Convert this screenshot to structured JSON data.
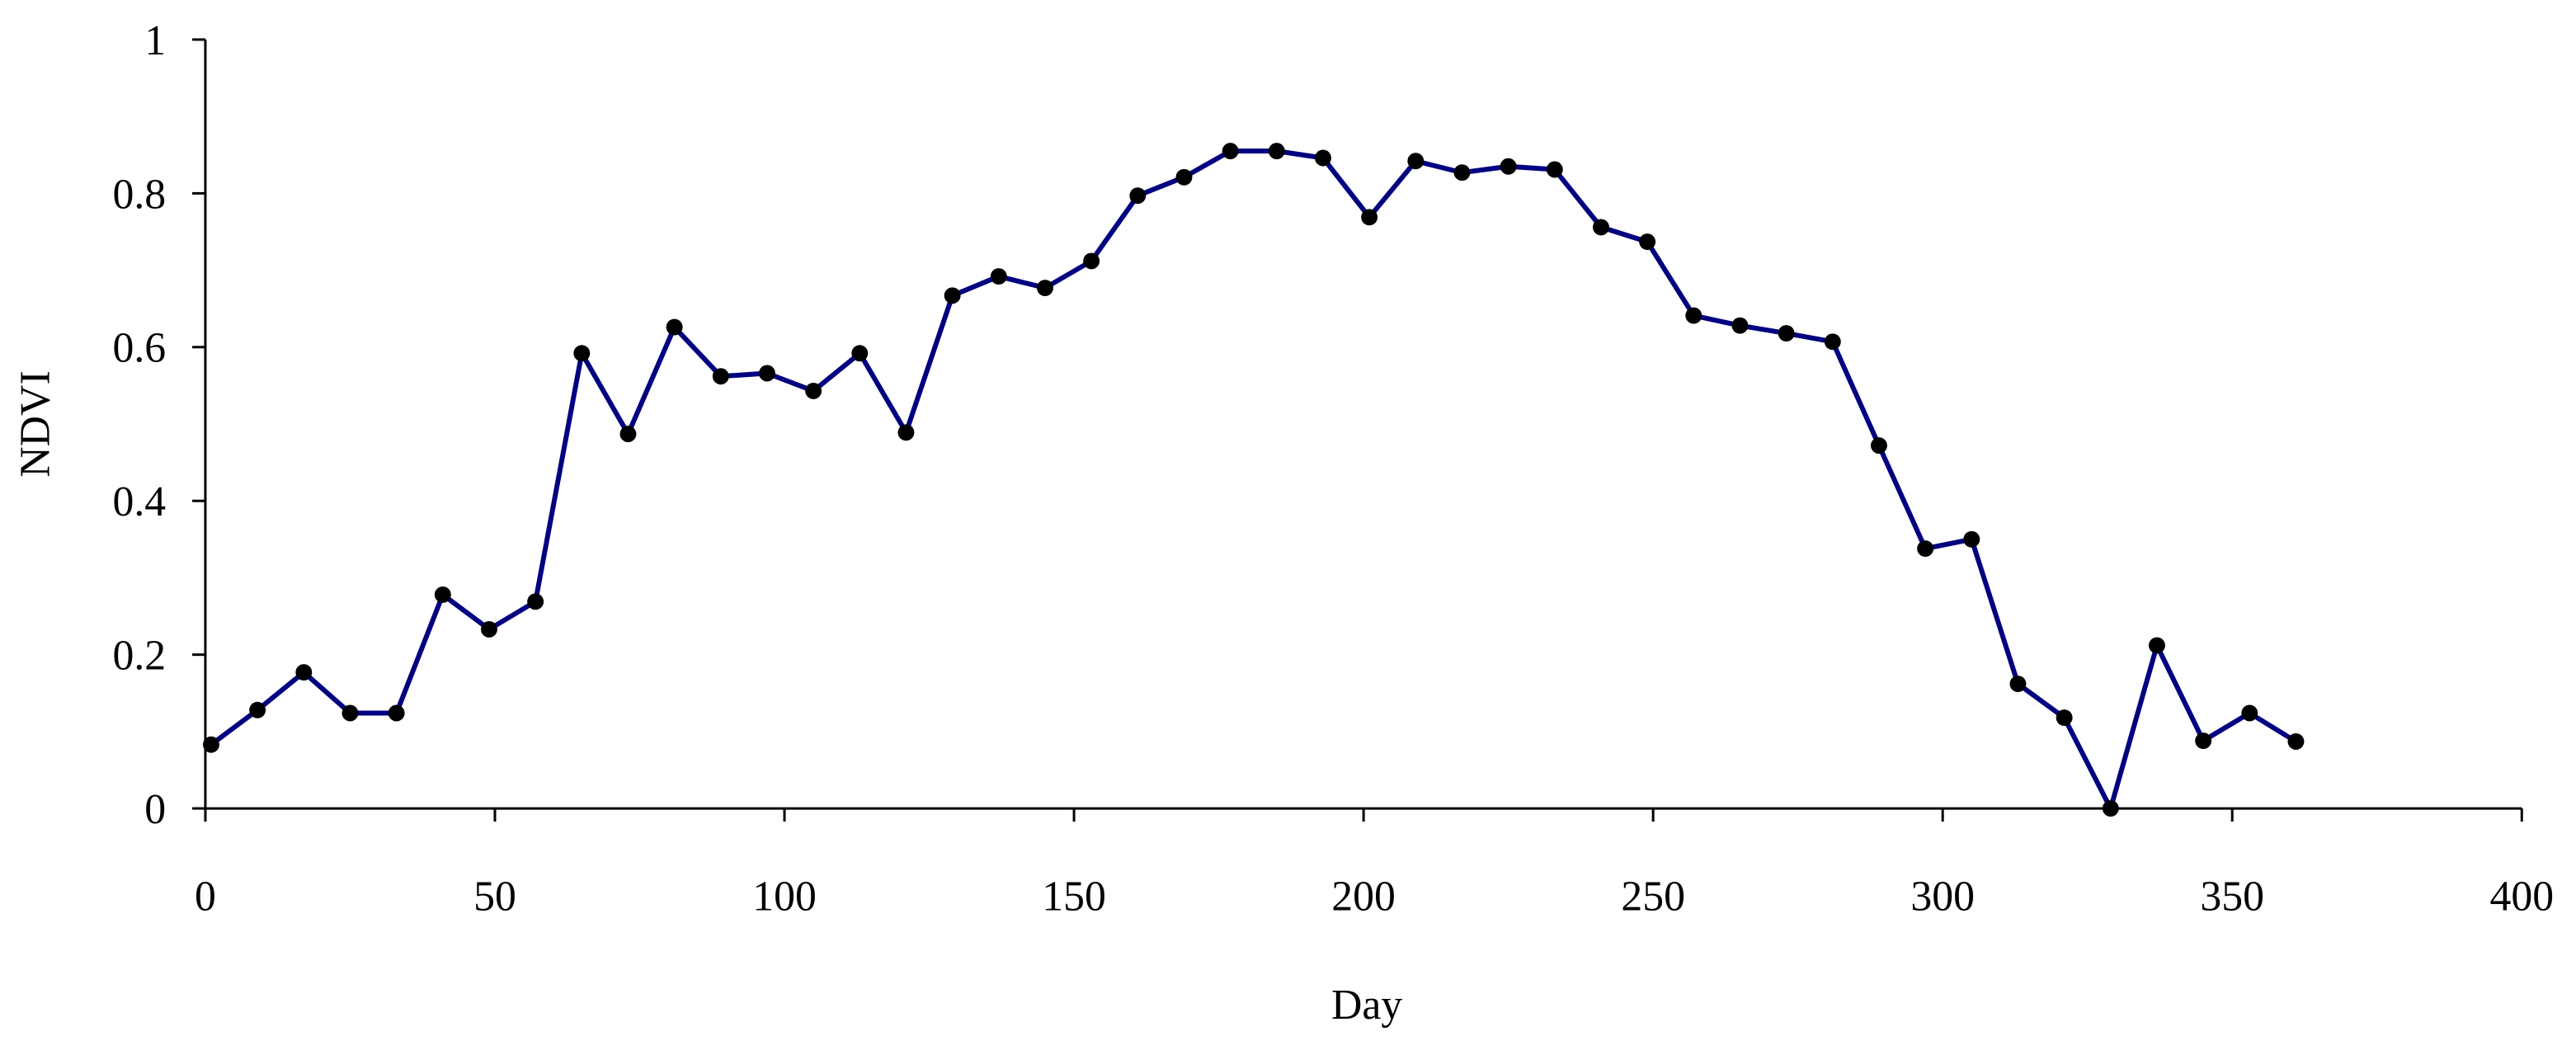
{
  "chart_data": {
    "type": "line",
    "x_label": "Day",
    "y_label": "NDVI",
    "x": [
      1,
      9,
      17,
      25,
      33,
      41,
      49,
      57,
      65,
      73,
      81,
      89,
      97,
      105,
      113,
      121,
      129,
      137,
      145,
      153,
      161,
      169,
      177,
      185,
      193,
      201,
      209,
      217,
      225,
      233,
      241,
      249,
      257,
      265,
      273,
      281,
      289,
      297,
      305,
      313,
      321,
      329,
      337,
      345,
      353,
      361
    ],
    "series": [
      {
        "color": "#000080",
        "marker_color": "#000000",
        "values": [
          0.083,
          0.128,
          0.177,
          0.124,
          0.124,
          0.278,
          0.233,
          0.269,
          0.592,
          0.487,
          0.626,
          0.562,
          0.566,
          0.543,
          0.592,
          0.489,
          0.667,
          0.692,
          0.677,
          0.712,
          0.797,
          0.821,
          0.855,
          0.855,
          0.846,
          0.769,
          0.842,
          0.827,
          0.835,
          0.831,
          0.756,
          0.737,
          0.641,
          0.628,
          0.618,
          0.607,
          0.472,
          0.338,
          0.35,
          0.162,
          0.118,
          0,
          0.212,
          0.088,
          0.124,
          0.087
        ]
      }
    ],
    "xlim": [
      0,
      400
    ],
    "xticks": [
      0,
      50,
      100,
      150,
      200,
      250,
      300,
      350,
      400
    ],
    "ylim": [
      0,
      1
    ],
    "yticks": [
      0,
      0.2,
      0.4,
      0.6,
      0.8,
      1
    ],
    "grid": false
  }
}
